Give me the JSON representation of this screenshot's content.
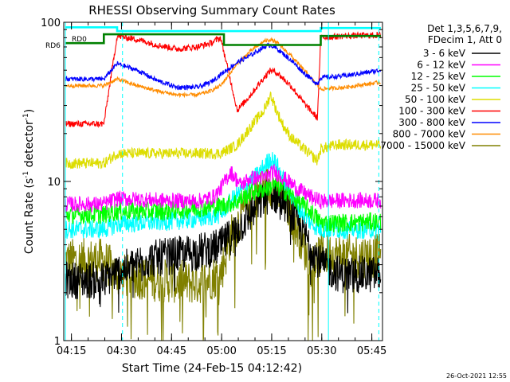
{
  "chart_data": {
    "type": "line",
    "title": "RHESSI Observing Summary Count Rates",
    "xlabel": "Start Time (24-Feb-15 04:12:42)",
    "ylabel_main": "Count Rate (s",
    "ylabel_exp1": "-1",
    "ylabel_mid": " detector",
    "ylabel_exp2": "-1",
    "ylabel_end": ")",
    "yscale": "log",
    "ylim": [
      1,
      100
    ],
    "xlim_minutes": [
      0,
      95.5
    ],
    "x_ticks": [
      {
        "label": "04:15",
        "t": 2.3
      },
      {
        "label": "04:30",
        "t": 17.3
      },
      {
        "label": "04:45",
        "t": 32.3
      },
      {
        "label": "05:00",
        "t": 47.3
      },
      {
        "label": "05:15",
        "t": 62.3
      },
      {
        "label": "05:30",
        "t": 77.3
      },
      {
        "label": "05:45",
        "t": 92.3
      }
    ],
    "y_ticks": [
      {
        "label": "1",
        "v": 1
      },
      {
        "label": "10",
        "v": 10
      },
      {
        "label": "100",
        "v": 100
      }
    ],
    "legend_header": [
      "Det 1,3,5,6,7,9,",
      "FDecim 1, Att 0"
    ],
    "legend_placement": "right",
    "footer_date": "26-Oct-2021 12:55",
    "annotations": [
      {
        "label": "RD0",
        "color": "#00ffff"
      },
      {
        "label": "RD6",
        "color": "#008000"
      }
    ],
    "series": [
      {
        "name": "3 - 6 keV",
        "color": "#000000",
        "t": [
          0.5,
          12,
          16,
          24,
          32,
          40,
          47,
          52,
          58,
          62,
          66,
          70,
          74,
          77,
          83,
          95
        ],
        "values": [
          2.4,
          2.4,
          2.7,
          3.2,
          3.4,
          3.6,
          3.9,
          5.0,
          7.0,
          8.5,
          7.5,
          5.5,
          4.0,
          3.0,
          2.6,
          2.6
        ]
      },
      {
        "name": "6 - 12 keV",
        "color": "#ff00ff",
        "t": [
          0.5,
          12,
          16,
          30,
          40,
          45,
          47,
          50,
          53,
          56,
          60,
          63,
          66,
          70,
          74,
          77,
          85,
          95
        ],
        "values": [
          7.2,
          7.2,
          7.8,
          7.6,
          7.5,
          8.0,
          9.0,
          11.5,
          9.5,
          10.5,
          10.5,
          11.5,
          10.5,
          9.0,
          8.0,
          7.5,
          7.6,
          7.6
        ]
      },
      {
        "name": "12 - 25 keV",
        "color": "#00ff00",
        "t": [
          0.5,
          12,
          16,
          30,
          40,
          47,
          52,
          56,
          60,
          63,
          66,
          70,
          74,
          77,
          85,
          95
        ],
        "values": [
          6.2,
          6.2,
          6.5,
          6.5,
          6.8,
          7.0,
          7.5,
          8.5,
          9.0,
          9.5,
          8.8,
          7.5,
          6.5,
          5.5,
          5.5,
          5.6
        ]
      },
      {
        "name": "25 - 50 keV",
        "color": "#00ffff",
        "t": [
          0.5,
          12,
          16,
          30,
          40,
          47,
          50,
          54,
          58,
          62,
          64,
          66,
          70,
          74,
          77,
          85,
          95
        ],
        "values": [
          5.0,
          5.0,
          5.4,
          5.6,
          5.8,
          6.2,
          7.5,
          9.0,
          11.0,
          14.0,
          12.5,
          10.0,
          7.0,
          5.5,
          5.0,
          5.0,
          5.0
        ]
      },
      {
        "name": "50 - 100 keV",
        "color": "#dddd00",
        "t": [
          0.5,
          12,
          16,
          30,
          40,
          47,
          52,
          56,
          60,
          62,
          64,
          66,
          68,
          72,
          76,
          77,
          82,
          95
        ],
        "values": [
          13,
          13,
          15,
          15,
          15,
          15,
          17,
          22,
          28,
          35,
          27,
          22,
          19,
          16,
          13.5,
          16,
          17,
          17
        ]
      },
      {
        "name": "100 - 300 keV",
        "color": "#ff0000",
        "t": [
          0.5,
          12,
          16,
          22,
          28,
          34,
          40,
          44,
          47,
          52,
          56,
          60,
          62,
          64,
          68,
          72,
          76,
          77,
          84,
          95
        ],
        "values": [
          23,
          23,
          82,
          78,
          72,
          68,
          70,
          74,
          80,
          28,
          35,
          45,
          50,
          48,
          40,
          31,
          25,
          80,
          82,
          83
        ]
      },
      {
        "name": "300 - 800 keV",
        "color": "#0000ff",
        "t": [
          0.5,
          12,
          16,
          22,
          28,
          34,
          40,
          44,
          47,
          52,
          56,
          60,
          62,
          64,
          68,
          72,
          76,
          77,
          84,
          95
        ],
        "values": [
          44,
          44,
          55,
          50,
          43,
          39,
          39,
          42,
          47,
          56,
          62,
          70,
          72,
          68,
          58,
          48,
          41,
          45,
          46,
          50
        ]
      },
      {
        "name": "800 - 7000 keV",
        "color": "#ff8c00",
        "t": [
          0.5,
          12,
          16,
          22,
          28,
          34,
          40,
          44,
          47,
          52,
          56,
          60,
          62,
          64,
          68,
          72,
          76,
          77,
          84,
          95
        ],
        "values": [
          40,
          40,
          44,
          40,
          37,
          35,
          35,
          37,
          40,
          55,
          66,
          76,
          78,
          74,
          62,
          50,
          40,
          38,
          39,
          42
        ]
      },
      {
        "name": "7000 - 15000 keV",
        "color": "#808000",
        "t": [
          0.5,
          12,
          16,
          28,
          40,
          47,
          50,
          54,
          58,
          62,
          66,
          70,
          74,
          77,
          85,
          95
        ],
        "values": [
          3.2,
          3.2,
          2.6,
          2.4,
          2.3,
          2.6,
          4.5,
          6.5,
          8.5,
          9.5,
          8.0,
          5.0,
          3.0,
          3.5,
          3.4,
          3.4
        ]
      }
    ],
    "attenuator_bands": [
      {
        "name": "RD0",
        "color": "#00ffff",
        "t": [
          0.5,
          16,
          16,
          77,
          77,
          95
        ],
        "values": [
          93,
          93,
          88,
          88,
          92,
          92
        ]
      },
      {
        "name": "RD6",
        "color": "#008000",
        "t": [
          0.5,
          12,
          12,
          48,
          48,
          77,
          77,
          95
        ],
        "values": [
          74,
          74,
          84,
          84,
          72,
          72,
          82,
          82
        ]
      }
    ],
    "vlines": [
      {
        "t": 0.5,
        "color": "#00ffff",
        "style": "solid"
      },
      {
        "t": 17.6,
        "color": "#00ffff",
        "style": "dashed"
      },
      {
        "t": 79.3,
        "color": "#00ffff",
        "style": "solid"
      },
      {
        "t": 94.4,
        "color": "#00ffff",
        "style": "dashed"
      }
    ]
  }
}
